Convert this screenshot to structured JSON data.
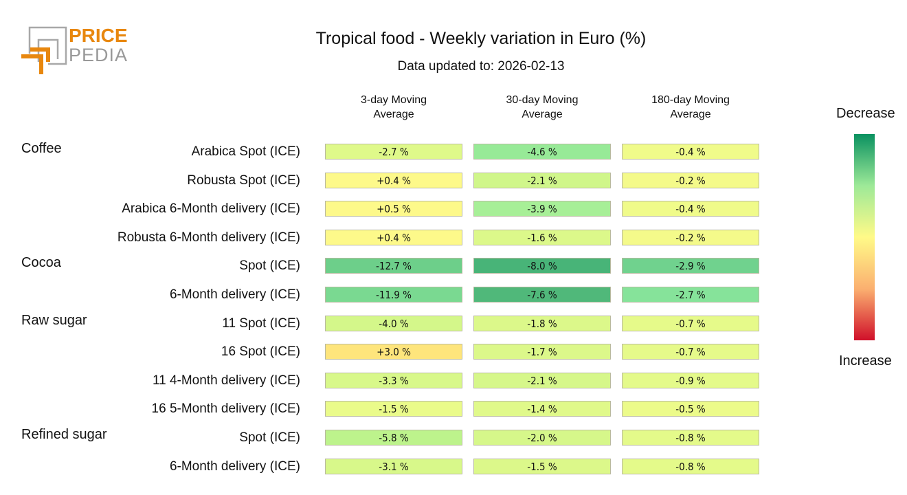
{
  "header": {
    "logo_text_top": "PRICE",
    "logo_text_bottom": "PEDIA",
    "title": "Tropical food - Weekly variation in Euro (%)",
    "subtitle": "Data updated to: 2026-02-13"
  },
  "legend": {
    "top_label": "Decrease",
    "bottom_label": "Increase",
    "gradient_colors": [
      "#0a9160",
      "#9de998",
      "#fffa88",
      "#fbb070",
      "#d0102a"
    ]
  },
  "chart_data": {
    "type": "heatmap",
    "title": "Tropical food - Weekly variation in Euro (%)",
    "columns": [
      "3-day Moving Average",
      "30-day Moving Average",
      "180-day Moving Average"
    ],
    "rows": [
      {
        "group": "Coffee",
        "label": "Arabica Spot (ICE)",
        "values": [
          "-2.7 %",
          "-4.6 %",
          "-0.4 %"
        ],
        "colors": [
          "#dff98a",
          "#97ea97",
          "#f0fb8a"
        ]
      },
      {
        "group": "",
        "label": "Robusta Spot (ICE)",
        "values": [
          "+0.4 %",
          "-2.1 %",
          "-0.2 %"
        ],
        "colors": [
          "#fdf98a",
          "#d0f68a",
          "#f4fa8a"
        ]
      },
      {
        "group": "",
        "label": "Arabica 6-Month delivery (ICE)",
        "values": [
          "+0.5 %",
          "-3.9 %",
          "-0.4 %"
        ],
        "colors": [
          "#fdf98a",
          "#a7ef97",
          "#f0fb8a"
        ]
      },
      {
        "group": "",
        "label": "Robusta 6-Month delivery (ICE)",
        "values": [
          "+0.4 %",
          "-1.6 %",
          "-0.2 %"
        ],
        "colors": [
          "#fdf98a",
          "#dcf88a",
          "#f4fa8a"
        ]
      },
      {
        "group": "Cocoa",
        "label": "Spot (ICE)",
        "values": [
          "-12.7 %",
          "-8.0 %",
          "-2.9 %"
        ],
        "colors": [
          "#6dcf8a",
          "#48b478",
          "#70d28e"
        ]
      },
      {
        "group": "",
        "label": "6-Month delivery (ICE)",
        "values": [
          "-11.9 %",
          "-7.6 %",
          "-2.7 %"
        ],
        "colors": [
          "#7ad991",
          "#50b87a",
          "#86e39a"
        ]
      },
      {
        "group": "Raw sugar",
        "label": "11 Spot (ICE)",
        "values": [
          "-4.0 %",
          "-1.8 %",
          "-0.7 %"
        ],
        "colors": [
          "#d4f78a",
          "#dcf88a",
          "#e6fa8a"
        ]
      },
      {
        "group": "",
        "label": "16 Spot (ICE)",
        "values": [
          "+3.0 %",
          "-1.7 %",
          "-0.7 %"
        ],
        "colors": [
          "#fee57c",
          "#dcf88a",
          "#e6fa8a"
        ]
      },
      {
        "group": "",
        "label": "11 4-Month delivery (ICE)",
        "values": [
          "-3.3 %",
          "-2.1 %",
          "-0.9 %"
        ],
        "colors": [
          "#d8f88a",
          "#d6f78a",
          "#e4fa8a"
        ]
      },
      {
        "group": "",
        "label": "16 5-Month delivery (ICE)",
        "values": [
          "-1.5 %",
          "-1.4 %",
          "-0.5 %"
        ],
        "colors": [
          "#eafb8a",
          "#e0f98a",
          "#ecfb8a"
        ]
      },
      {
        "group": "Refined sugar",
        "label": "Spot (ICE)",
        "values": [
          "-5.8 %",
          "-2.0 %",
          "-0.8 %"
        ],
        "colors": [
          "#bdf38c",
          "#d6f78a",
          "#e4fa8a"
        ]
      },
      {
        "group": "",
        "label": "6-Month delivery (ICE)",
        "values": [
          "-3.1 %",
          "-1.5 %",
          "-0.8 %"
        ],
        "colors": [
          "#d8f88a",
          "#dcf88a",
          "#e4fa8a"
        ]
      }
    ]
  }
}
